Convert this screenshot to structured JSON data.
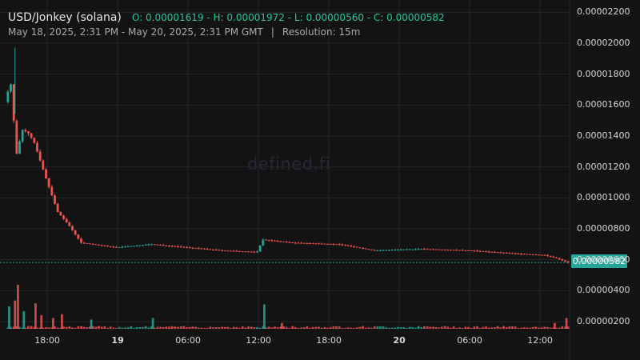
{
  "header": {
    "title": "USD/Jonkey (solana)",
    "ohlc": "O: 0.00001619 - H: 0.00001972 - L: 0.00000560 - C: 0.00000582",
    "range": "May 18, 2025, 2:31 PM - May 20, 2025, 2:31 PM GMT",
    "separator": "|",
    "resolution": "Resolution: 15m"
  },
  "watermark": "defined.fi",
  "last_price": "0.00000582",
  "colors": {
    "up": "#26a69a",
    "down": "#ef5350",
    "background": "#131313",
    "grid": "#262626"
  },
  "chart_data": {
    "type": "candlestick",
    "title": "USD/Jonkey (solana)",
    "resolution": "15m",
    "grid": true,
    "y_axis_side": "right",
    "ylim": [
      1e-06,
      2.25e-05
    ],
    "x_range": [
      "2025-05-18 14:31",
      "2025-05-20 14:31"
    ],
    "y_ticks": [
      "0.00002200",
      "0.00002000",
      "0.00001800",
      "0.00001600",
      "0.00001400",
      "0.00001200",
      "0.00001000",
      "0.00000800",
      "0.00000600",
      "0.00000400",
      "0.00000200"
    ],
    "x_ticks": [
      {
        "label": "18:00",
        "t": "2025-05-18 18:00",
        "bold": false
      },
      {
        "label": "19",
        "t": "2025-05-19 00:00",
        "bold": true
      },
      {
        "label": "06:00",
        "t": "2025-05-19 06:00",
        "bold": false
      },
      {
        "label": "12:00",
        "t": "2025-05-19 12:00",
        "bold": false
      },
      {
        "label": "18:00",
        "t": "2025-05-19 18:00",
        "bold": false
      },
      {
        "label": "20",
        "t": "2025-05-20 00:00",
        "bold": true
      },
      {
        "label": "06:00",
        "t": "2025-05-20 06:00",
        "bold": false
      },
      {
        "label": "12:00",
        "t": "2025-05-20 12:00",
        "bold": false
      }
    ],
    "last_close": 5.82e-06,
    "price_anchors": [
      [
        "2025-05-18 14:31",
        1.62e-05
      ],
      [
        "2025-05-18 15:00",
        1.75e-05
      ],
      [
        "2025-05-18 15:30",
        1.28e-05
      ],
      [
        "2025-05-18 16:00",
        1.44e-05
      ],
      [
        "2025-05-18 16:30",
        1.42e-05
      ],
      [
        "2025-05-18 17:00",
        1.36e-05
      ],
      [
        "2025-05-18 18:00",
        1.13e-05
      ],
      [
        "2025-05-18 19:00",
        9.1e-06
      ],
      [
        "2025-05-18 20:00",
        8.2e-06
      ],
      [
        "2025-05-18 21:00",
        7.1e-06
      ],
      [
        "2025-05-18 22:00",
        7e-06
      ],
      [
        "2025-05-19 00:00",
        6.8e-06
      ],
      [
        "2025-05-19 03:00",
        7e-06
      ],
      [
        "2025-05-19 06:00",
        6.8e-06
      ],
      [
        "2025-05-19 09:00",
        6.6e-06
      ],
      [
        "2025-05-19 12:00",
        6.5e-06
      ],
      [
        "2025-05-19 12:30",
        7.3e-06
      ],
      [
        "2025-05-19 15:00",
        7.1e-06
      ],
      [
        "2025-05-19 19:00",
        7e-06
      ],
      [
        "2025-05-19 22:00",
        6.6e-06
      ],
      [
        "2025-05-20 02:00",
        6.7e-06
      ],
      [
        "2025-05-20 06:00",
        6.6e-06
      ],
      [
        "2025-05-20 10:00",
        6.4e-06
      ],
      [
        "2025-05-20 12:30",
        6.3e-06
      ],
      [
        "2025-05-20 13:30",
        6.1e-06
      ],
      [
        "2025-05-20 14:31",
        5.82e-06
      ]
    ],
    "volume_spikes": [
      [
        "2025-05-18 14:45",
        0.46,
        "up"
      ],
      [
        "2025-05-18 15:15",
        0.58,
        "down"
      ],
      [
        "2025-05-18 15:30",
        0.9,
        "down"
      ],
      [
        "2025-05-18 16:00",
        0.36,
        "up"
      ],
      [
        "2025-05-18 17:00",
        0.52,
        "down"
      ],
      [
        "2025-05-18 17:30",
        0.28,
        "down"
      ],
      [
        "2025-05-18 18:30",
        0.22,
        "down"
      ],
      [
        "2025-05-18 19:15",
        0.3,
        "down"
      ],
      [
        "2025-05-18 21:45",
        0.19,
        "up"
      ],
      [
        "2025-05-19 03:00",
        0.22,
        "up"
      ],
      [
        "2025-05-19 12:30",
        0.5,
        "up"
      ],
      [
        "2025-05-19 14:00",
        0.12,
        "down"
      ],
      [
        "2025-05-20 13:15",
        0.12,
        "down"
      ],
      [
        "2025-05-20 14:15",
        0.22,
        "down"
      ]
    ]
  }
}
